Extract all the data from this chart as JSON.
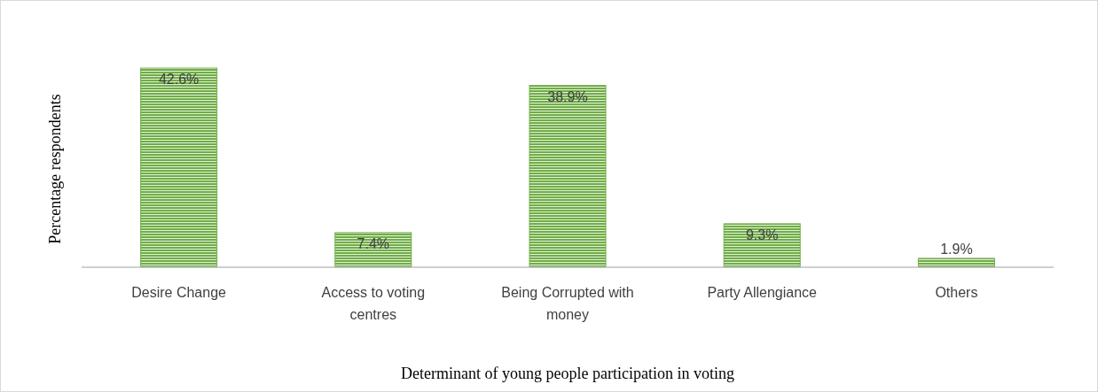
{
  "chart_data": {
    "type": "bar",
    "xlabel": "Determinant of young people participation in voting",
    "ylabel": "Percentage respondents",
    "categories": [
      "Desire Change",
      "Access to voting centres",
      "Being Corrupted with money",
      "Party Allengiance",
      "Others"
    ],
    "values": [
      42.6,
      7.4,
      38.9,
      9.3,
      1.9
    ],
    "value_labels": [
      "42.6%",
      "7.4%",
      "38.9%",
      "9.3%",
      "1.9%"
    ],
    "color": "#70ad47"
  }
}
